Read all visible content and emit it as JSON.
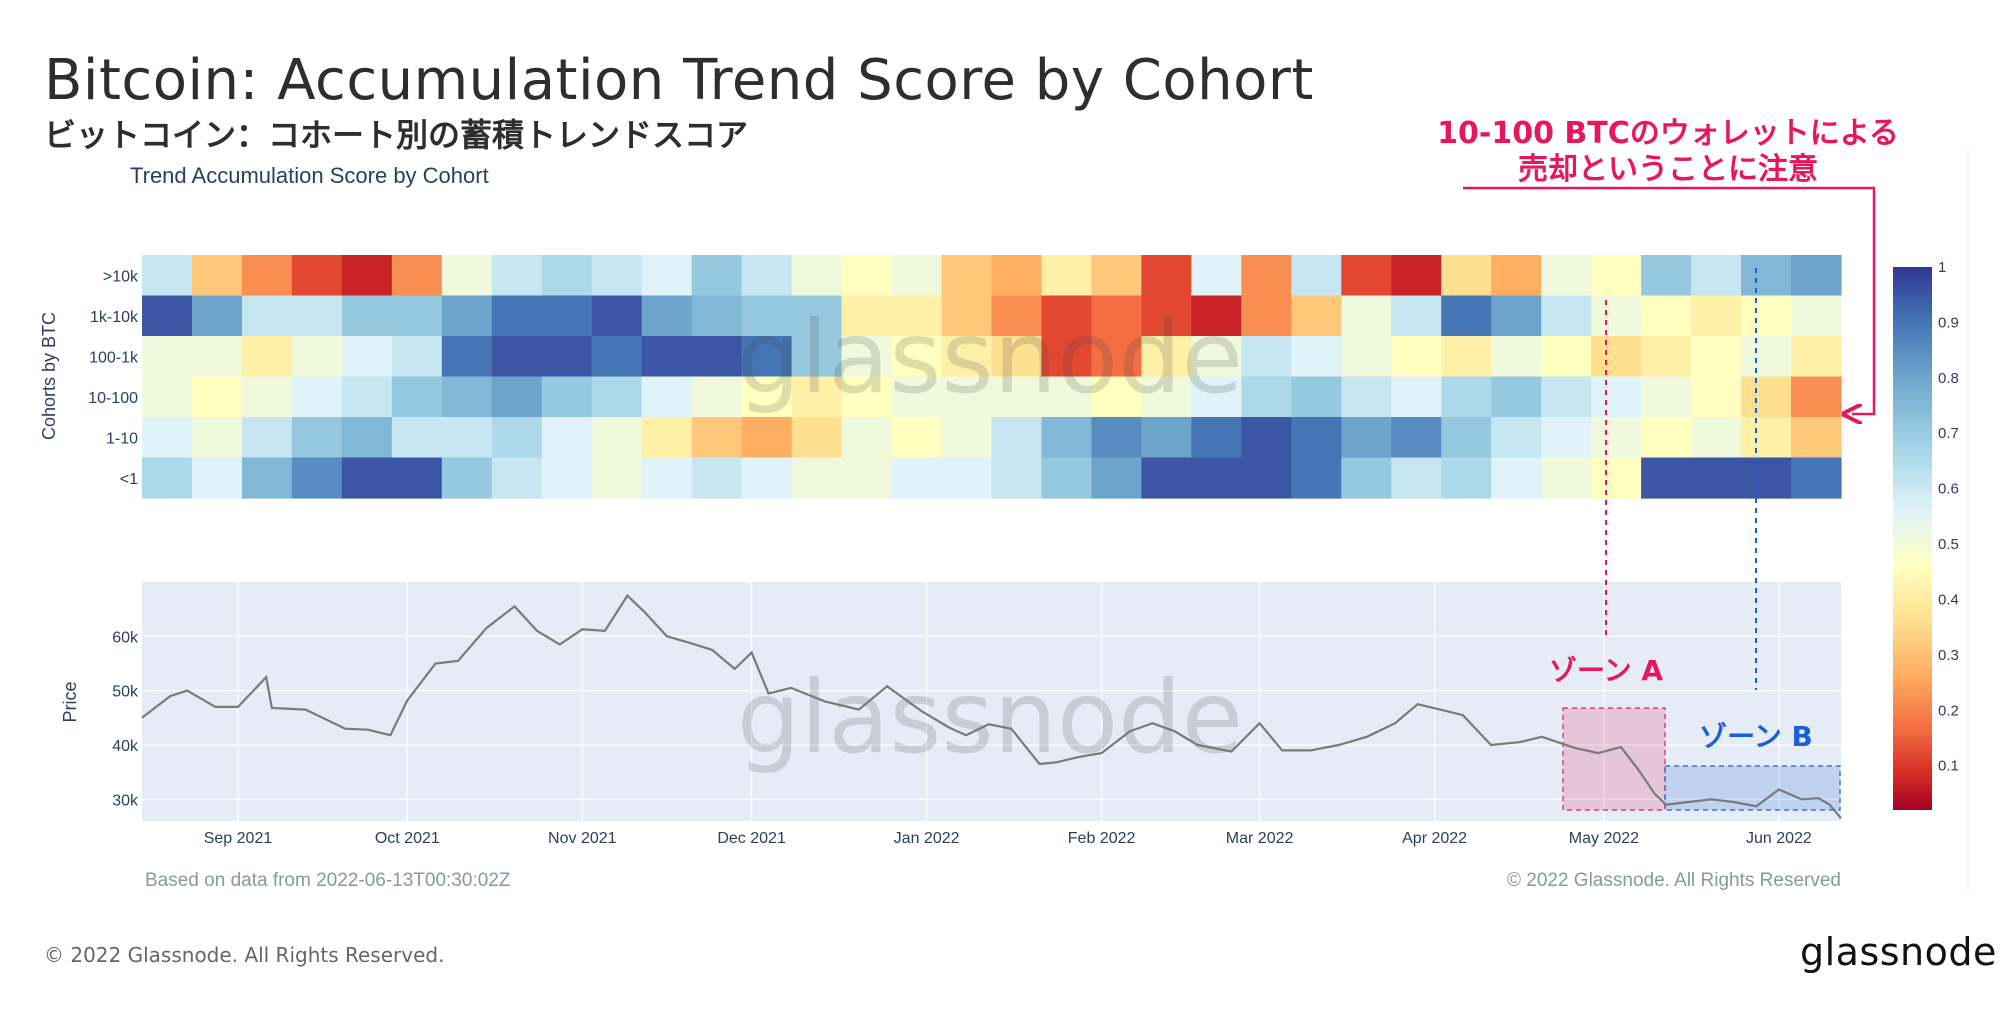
{
  "header": {
    "title": "Bitcoin: Accumulation Trend Score by Cohort",
    "subtitle": "ビットコイン：コホート別の蓄積トレンドスコア"
  },
  "footer": {
    "copyright": "© 2022 Glassnode. All Rights Reserved.",
    "logo": "glassnode"
  },
  "annotations": {
    "callout_line1": "10-100 BTCのウォレットによる",
    "callout_line2": "売却ということに注意",
    "zone_a": "ゾーン A",
    "zone_b": "ゾーン B",
    "callout_color": "#e8175d",
    "zone_a_color": "#e8175d",
    "zone_b_color": "#1a5fd6"
  },
  "chart_data": [
    {
      "type": "heatmap",
      "title": "Trend Accumulation Score by Cohort",
      "ylabel": "Cohorts by BTC",
      "rows": [
        ">10k",
        "1k-10k",
        "100-1k",
        "10-100",
        "1-10",
        "<1"
      ],
      "x_range": [
        "2021-08-15",
        "2022-06-12"
      ],
      "segments_per_row": 34,
      "values": [
        [
          0.6,
          0.3,
          0.2,
          0.1,
          0.05,
          0.2,
          0.5,
          0.6,
          0.65,
          0.6,
          0.55,
          0.7,
          0.6,
          0.5,
          0.45,
          0.5,
          0.3,
          0.25,
          0.4,
          0.3,
          0.1,
          0.55,
          0.2,
          0.6,
          0.1,
          0.05,
          0.35,
          0.25,
          0.5,
          0.45,
          0.7,
          0.6,
          0.75,
          0.8
        ],
        [
          0.95,
          0.8,
          0.6,
          0.6,
          0.7,
          0.7,
          0.8,
          0.9,
          0.9,
          0.95,
          0.8,
          0.75,
          0.7,
          0.7,
          0.4,
          0.4,
          0.3,
          0.2,
          0.1,
          0.15,
          0.1,
          0.05,
          0.2,
          0.3,
          0.5,
          0.6,
          0.9,
          0.8,
          0.6,
          0.5,
          0.45,
          0.4,
          0.45,
          0.5
        ],
        [
          0.5,
          0.5,
          0.4,
          0.5,
          0.55,
          0.6,
          0.9,
          0.95,
          0.95,
          0.9,
          0.95,
          0.95,
          0.9,
          0.7,
          0.5,
          0.45,
          0.4,
          0.35,
          0.1,
          0.15,
          0.4,
          0.5,
          0.6,
          0.55,
          0.5,
          0.45,
          0.4,
          0.5,
          0.45,
          0.35,
          0.4,
          0.45,
          0.5,
          0.4
        ],
        [
          0.5,
          0.45,
          0.5,
          0.55,
          0.6,
          0.7,
          0.75,
          0.8,
          0.7,
          0.65,
          0.55,
          0.5,
          0.45,
          0.4,
          0.45,
          0.5,
          0.5,
          0.5,
          0.5,
          0.45,
          0.5,
          0.55,
          0.65,
          0.7,
          0.6,
          0.55,
          0.65,
          0.7,
          0.6,
          0.55,
          0.5,
          0.45,
          0.35,
          0.2
        ],
        [
          0.55,
          0.5,
          0.6,
          0.7,
          0.75,
          0.6,
          0.6,
          0.65,
          0.55,
          0.5,
          0.4,
          0.3,
          0.25,
          0.35,
          0.5,
          0.45,
          0.5,
          0.6,
          0.75,
          0.85,
          0.8,
          0.9,
          0.95,
          0.9,
          0.8,
          0.85,
          0.7,
          0.6,
          0.55,
          0.5,
          0.45,
          0.5,
          0.4,
          0.3
        ],
        [
          0.65,
          0.55,
          0.75,
          0.85,
          0.95,
          0.95,
          0.7,
          0.6,
          0.55,
          0.5,
          0.55,
          0.6,
          0.55,
          0.5,
          0.5,
          0.55,
          0.55,
          0.6,
          0.7,
          0.8,
          0.95,
          0.95,
          0.95,
          0.9,
          0.7,
          0.6,
          0.65,
          0.55,
          0.5,
          0.45,
          0.95,
          0.95,
          0.95,
          0.9
        ]
      ],
      "colorbar_ticks": [
        1,
        0.9,
        0.8,
        0.7,
        0.6,
        0.5,
        0.4,
        0.3,
        0.2,
        0.1
      ]
    },
    {
      "type": "line",
      "ylabel": "Price",
      "x_range": [
        "2021-08-15",
        "2022-06-12"
      ],
      "y_range": [
        26000,
        70000
      ],
      "y_ticks": [
        30000,
        40000,
        50000,
        60000
      ],
      "y_tick_labels": [
        "30k",
        "40k",
        "50k",
        "60k"
      ],
      "x_tick_dates": [
        "2021-09-01",
        "2021-10-01",
        "2021-11-01",
        "2021-12-01",
        "2022-01-01",
        "2022-02-01",
        "2022-03-01",
        "2022-04-01",
        "2022-05-01",
        "2022-06-01"
      ],
      "x_tick_labels": [
        "Sep 2021",
        "Oct 2021",
        "Nov 2021",
        "Dec 2021",
        "Jan 2022",
        "Feb 2022",
        "Mar 2022",
        "Apr 2022",
        "May 2022",
        "Jun 2022"
      ],
      "series": [
        {
          "x": [
            "2021-08-15",
            "2021-08-20",
            "2021-08-23",
            "2021-08-28",
            "2021-09-01",
            "2021-09-06",
            "2021-09-07",
            "2021-09-13",
            "2021-09-20",
            "2021-09-24",
            "2021-09-28",
            "2021-10-01",
            "2021-10-06",
            "2021-10-10",
            "2021-10-15",
            "2021-10-20",
            "2021-10-24",
            "2021-10-28",
            "2021-11-01",
            "2021-11-05",
            "2021-11-09",
            "2021-11-12",
            "2021-11-16",
            "2021-11-20",
            "2021-11-24",
            "2021-11-28",
            "2021-12-01",
            "2021-12-04",
            "2021-12-08",
            "2021-12-14",
            "2021-12-20",
            "2021-12-25",
            "2021-12-31",
            "2022-01-05",
            "2022-01-08",
            "2022-01-12",
            "2022-01-16",
            "2022-01-21",
            "2022-01-24",
            "2022-01-28",
            "2022-02-01",
            "2022-02-06",
            "2022-02-10",
            "2022-02-14",
            "2022-02-18",
            "2022-02-24",
            "2022-03-01",
            "2022-03-05",
            "2022-03-10",
            "2022-03-15",
            "2022-03-20",
            "2022-03-25",
            "2022-03-29",
            "2022-04-02",
            "2022-04-06",
            "2022-04-11",
            "2022-04-16",
            "2022-04-20",
            "2022-04-26",
            "2022-04-30",
            "2022-05-04",
            "2022-05-07",
            "2022-05-10",
            "2022-05-12",
            "2022-05-16",
            "2022-05-20",
            "2022-05-24",
            "2022-05-28",
            "2022-06-01",
            "2022-06-05",
            "2022-06-08",
            "2022-06-10",
            "2022-06-12"
          ],
          "values": [
            45000,
            49000,
            50000,
            47000,
            47000,
            52500,
            46800,
            46500,
            43000,
            42800,
            41800,
            48200,
            55000,
            55500,
            61500,
            65500,
            61000,
            58500,
            61300,
            61000,
            67500,
            64500,
            60000,
            58800,
            57500,
            54000,
            57000,
            49500,
            50500,
            48000,
            46500,
            50800,
            46300,
            43200,
            41800,
            43800,
            43000,
            36500,
            36800,
            37800,
            38500,
            42500,
            44000,
            42500,
            40000,
            38800,
            44000,
            39000,
            39000,
            40000,
            41500,
            44000,
            47500,
            46500,
            45500,
            40000,
            40500,
            41500,
            39400,
            38500,
            39600,
            35600,
            31000,
            29000,
            29500,
            30000,
            29500,
            28700,
            31800,
            30000,
            30200,
            29000,
            26500
          ]
        }
      ]
    }
  ],
  "chart_labels": {
    "watermark": "glassnode",
    "based_on": "Based on data from 2022-06-13T00:30:02Z",
    "copyright": "© 2022 Glassnode. All Rights Reserved"
  }
}
